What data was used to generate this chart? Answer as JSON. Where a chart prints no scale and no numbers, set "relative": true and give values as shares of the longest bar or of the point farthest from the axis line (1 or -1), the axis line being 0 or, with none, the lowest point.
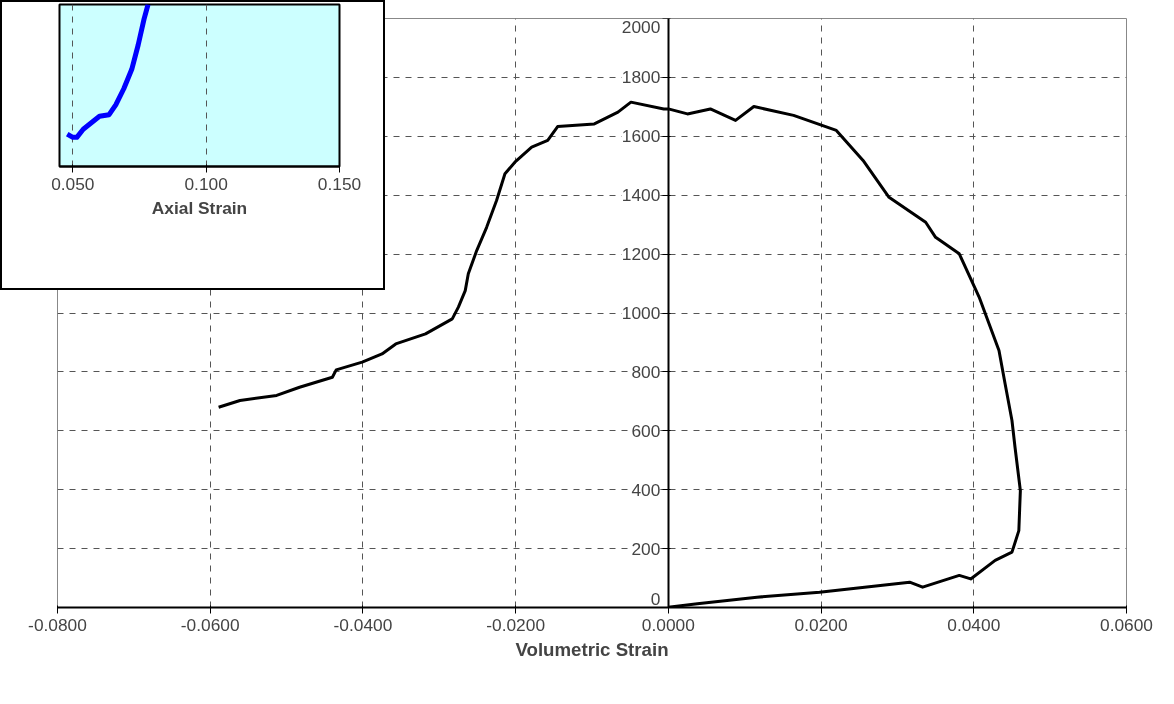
{
  "chart_data": [
    {
      "type": "line",
      "xlabel": "Volumetric Strain",
      "xlim": [
        -0.08,
        0.06
      ],
      "xticks": [
        {
          "value": -0.08,
          "label": "-0.0800"
        },
        {
          "value": -0.06,
          "label": "-0.0600"
        },
        {
          "value": -0.04,
          "label": "-0.0400"
        },
        {
          "value": -0.02,
          "label": "-0.0200"
        },
        {
          "value": 0,
          "label": "0.0000"
        },
        {
          "value": 0.02,
          "label": "0.0200"
        },
        {
          "value": 0.04,
          "label": "0.0400"
        },
        {
          "value": 0.06,
          "label": "0.0600"
        }
      ],
      "ylim": [
        0,
        2000
      ],
      "yticks": [
        0,
        200,
        400,
        600,
        800,
        1000,
        1200,
        1400,
        1600,
        1800,
        2000
      ],
      "grid": true,
      "series": [
        {
          "color": "#000000",
          "x": [
            -0.0589,
            -0.0561,
            -0.0513,
            -0.0483,
            -0.044,
            -0.0435,
            -0.0401,
            -0.0375,
            -0.0357,
            -0.0318,
            -0.0283,
            -0.0275,
            -0.0266,
            -0.0262,
            -0.0251,
            -0.0238,
            -0.0225,
            -0.0214,
            -0.0201,
            -0.0179,
            -0.0158,
            -0.0145,
            -0.0097,
            -0.0066,
            -0.0049,
            -0.0006,
            0.0,
            0.0025,
            0.0055,
            0.0088,
            0.0112,
            0.0164,
            0.022,
            0.0255,
            0.0289,
            0.0337,
            0.035,
            0.0381,
            0.0407,
            0.0433,
            0.0441,
            0.045,
            0.0454,
            0.0461,
            0.0459,
            0.045,
            0.0428,
            0.0396,
            0.0381,
            0.0333,
            0.0316,
            0.0198,
            0.0116,
            0.0038,
            0.0
          ],
          "values": [
            680,
            703,
            720,
            748,
            782,
            807,
            833,
            861,
            895,
            929,
            980,
            1020,
            1076,
            1133,
            1212,
            1291,
            1382,
            1473,
            1512,
            1563,
            1586,
            1633,
            1642,
            1682,
            1716,
            1693,
            1693,
            1676,
            1693,
            1654,
            1701,
            1671,
            1620,
            1518,
            1393,
            1308,
            1257,
            1201,
            1054,
            873,
            760,
            635,
            544,
            397,
            261,
            188,
            160,
            97,
            109,
            69,
            86,
            52,
            35,
            13,
            1
          ]
        }
      ]
    },
    {
      "type": "line",
      "xlabel": "Axial Strain",
      "relative": true,
      "xlim": [
        0.045,
        0.15
      ],
      "xticks": [
        {
          "value": 0.05,
          "label": "0.050"
        },
        {
          "value": 0.1,
          "label": "0.100"
        },
        {
          "value": 0.15,
          "label": "0.150"
        }
      ],
      "grid": "x",
      "series": [
        {
          "color": "#0000ff",
          "x": [
            0.0479,
            0.05,
            0.0515,
            0.0539,
            0.06,
            0.0636,
            0.0661,
            0.0691,
            0.0721,
            0.0745,
            0.0767,
            0.0782
          ],
          "values": [
            0.2,
            0.18,
            0.18,
            0.23,
            0.31,
            0.32,
            0.38,
            0.48,
            0.6,
            0.75,
            0.91,
            1.0
          ]
        }
      ]
    }
  ]
}
